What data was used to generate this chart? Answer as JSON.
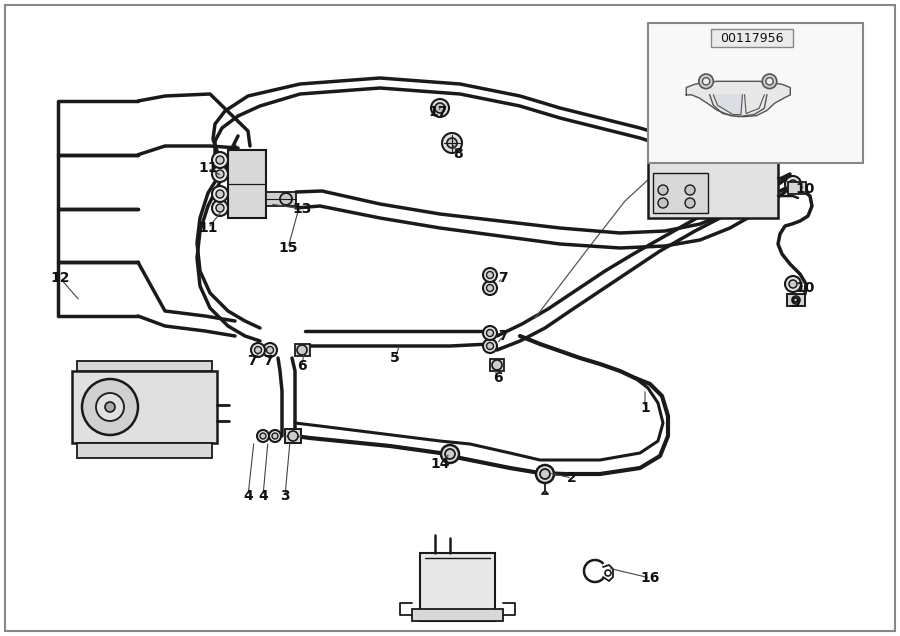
{
  "bg_color": "#ffffff",
  "border_color": "#aaaaaa",
  "line_color": "#1a1a1a",
  "diagram_number": "00117956",
  "pipe_lw": 2.5,
  "thin_lw": 1.0,
  "labels": [
    [
      "1",
      645,
      228
    ],
    [
      "2",
      572,
      158
    ],
    [
      "3",
      285,
      140
    ],
    [
      "4",
      263,
      140
    ],
    [
      "4",
      248,
      140
    ],
    [
      "5",
      395,
      278
    ],
    [
      "6",
      498,
      258
    ],
    [
      "6",
      302,
      270
    ],
    [
      "7",
      252,
      275
    ],
    [
      "7",
      268,
      275
    ],
    [
      "7",
      500,
      300
    ],
    [
      "7",
      500,
      355
    ],
    [
      "8",
      455,
      482
    ],
    [
      "9",
      792,
      335
    ],
    [
      "10",
      800,
      350
    ],
    [
      "10",
      800,
      448
    ],
    [
      "11",
      208,
      408
    ],
    [
      "11",
      208,
      468
    ],
    [
      "12",
      62,
      358
    ],
    [
      "13",
      302,
      428
    ],
    [
      "14",
      440,
      172
    ],
    [
      "15",
      288,
      388
    ],
    [
      "16",
      650,
      58
    ],
    [
      "17",
      438,
      525
    ]
  ]
}
